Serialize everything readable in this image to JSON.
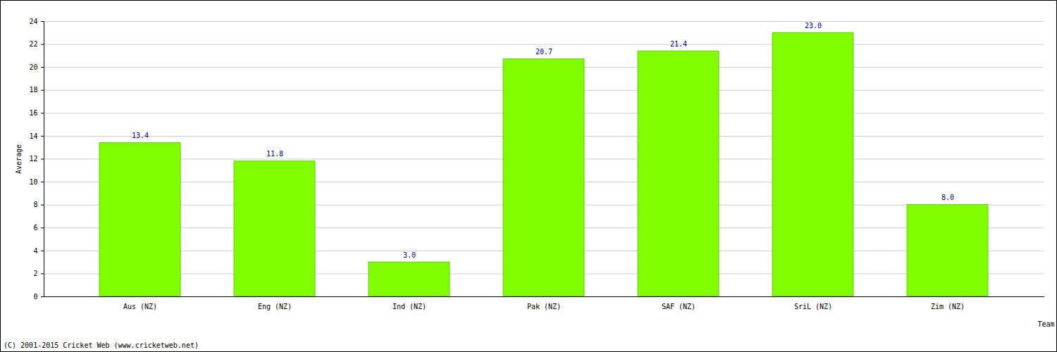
{
  "chart_data": {
    "type": "bar",
    "xlabel": "Team",
    "ylabel": "Average",
    "categories": [
      "Aus (NZ)",
      "Eng (NZ)",
      "Ind (NZ)",
      "Pak (NZ)",
      "SAF (NZ)",
      "SriL (NZ)",
      "Zim (NZ)"
    ],
    "values": [
      13.4,
      11.8,
      3.0,
      20.7,
      21.4,
      23.0,
      8.0
    ],
    "value_labels": [
      "13.4",
      "11.8",
      "3.0",
      "20.7",
      "21.4",
      "23.0",
      "8.0"
    ],
    "color": "#80ff00",
    "ylim": [
      0,
      24
    ],
    "yticks": [
      0,
      2,
      4,
      6,
      8,
      10,
      12,
      14,
      16,
      18,
      20,
      22,
      24
    ],
    "grid": true,
    "data_labels": true,
    "caption": "(C) 2001-2015 Cricket Web (www.cricketweb.net)"
  }
}
